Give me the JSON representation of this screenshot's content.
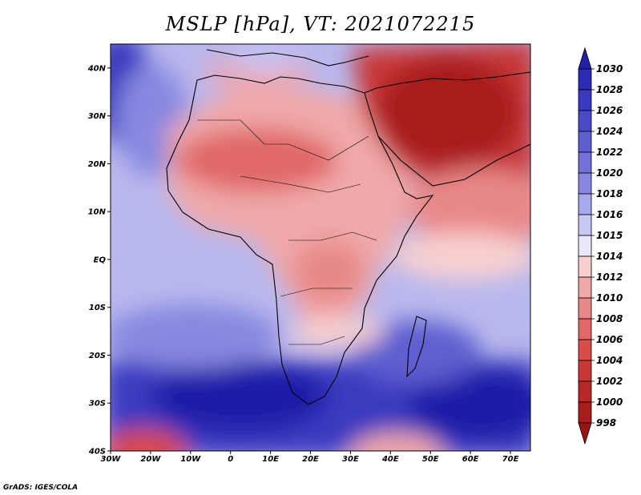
{
  "map": {
    "title": "MSLP [hPa], VT: 2021072215",
    "credit": "GrADS: IGES/COLA",
    "lon_labels": [
      "30W",
      "20W",
      "10W",
      "0",
      "10E",
      "20E",
      "30E",
      "40E",
      "50E",
      "60E",
      "70E"
    ],
    "lat_labels": [
      "40N",
      "30N",
      "20N",
      "10N",
      "EQ",
      "10S",
      "20S",
      "30S",
      "40S"
    ],
    "extent": {
      "lon": [
        -30,
        75
      ],
      "lat": [
        -40,
        45
      ]
    },
    "colorbar": {
      "levels": [
        "1030",
        "1028",
        "1026",
        "1024",
        "1022",
        "1020",
        "1018",
        "1016",
        "1015",
        "1014",
        "1012",
        "1010",
        "1008",
        "1006",
        "1004",
        "1002",
        "1000",
        "998"
      ],
      "colors": [
        "#1f1fa8",
        "#2c2cb4",
        "#3a3ac0",
        "#4a4ac8",
        "#5e5ed0",
        "#7272d8",
        "#8888e0",
        "#a8a8ec",
        "#c8c8f4",
        "#e8e8fa",
        "#f8d0d0",
        "#f0a8a8",
        "#e88888",
        "#e06868",
        "#d84c4c",
        "#c83838",
        "#b82828",
        "#a81c1c",
        "#9a1414"
      ]
    }
  }
}
